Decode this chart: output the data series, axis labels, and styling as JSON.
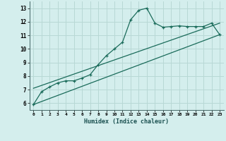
{
  "xlabel": "Humidex (Indice chaleur)",
  "bg_color": "#d4eeed",
  "grid_color": "#b8d8d5",
  "line_color": "#1a6b5a",
  "xlim": [
    -0.5,
    23.5
  ],
  "ylim": [
    5.5,
    13.5
  ],
  "xticks": [
    0,
    1,
    2,
    3,
    4,
    5,
    6,
    7,
    8,
    9,
    10,
    11,
    12,
    13,
    14,
    15,
    16,
    17,
    18,
    19,
    20,
    21,
    22,
    23
  ],
  "yticks": [
    6,
    7,
    8,
    9,
    10,
    11,
    12,
    13
  ],
  "line1_x": [
    0,
    1,
    2,
    3,
    4,
    5,
    6,
    7,
    8,
    9,
    10,
    11,
    12,
    13,
    14,
    15,
    16,
    17,
    18,
    19,
    20,
    21,
    22,
    23
  ],
  "line1_y": [
    5.9,
    6.85,
    7.2,
    7.5,
    7.65,
    7.65,
    7.85,
    8.1,
    8.85,
    9.5,
    10.0,
    10.5,
    12.15,
    12.85,
    13.0,
    11.9,
    11.6,
    11.65,
    11.7,
    11.65,
    11.65,
    11.65,
    11.9,
    11.05
  ],
  "line2_x": [
    0,
    23
  ],
  "line2_y": [
    5.9,
    11.05
  ],
  "line3_x": [
    0,
    23
  ],
  "line3_y": [
    7.1,
    11.9
  ]
}
